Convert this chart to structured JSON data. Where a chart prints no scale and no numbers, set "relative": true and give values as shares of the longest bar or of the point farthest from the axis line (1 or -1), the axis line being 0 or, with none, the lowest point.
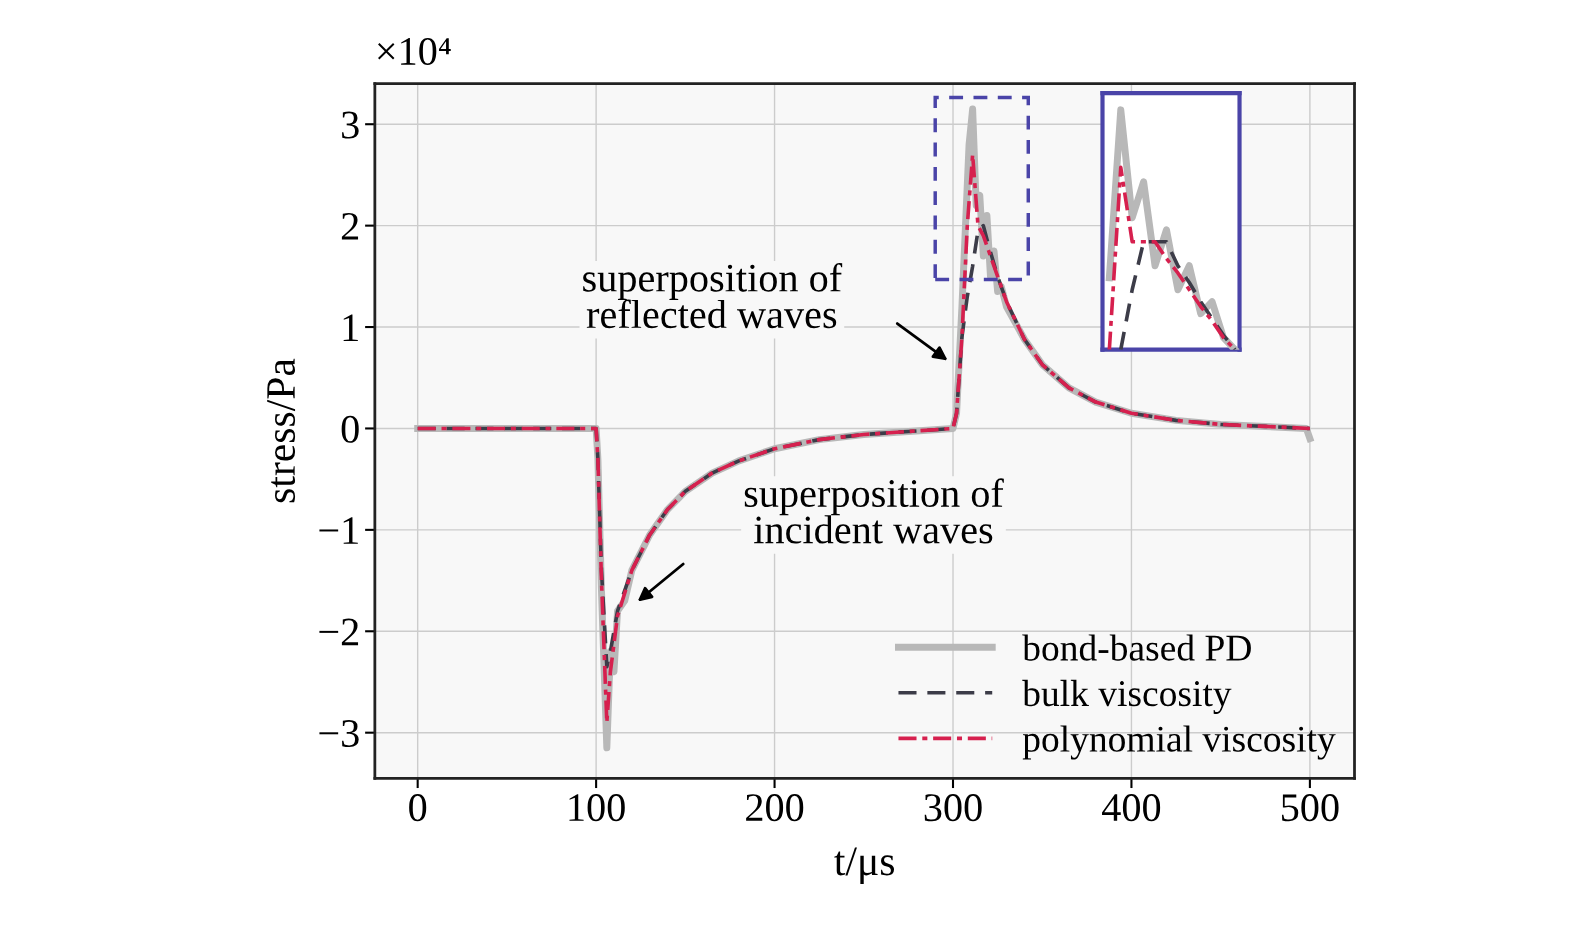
{
  "chart_data": [
    {
      "type": "line",
      "xlabel": "t/μs",
      "ylabel": "stress/Pa",
      "xlim": [
        -24,
        525
      ],
      "ylim": [
        -3.45,
        3.4
      ],
      "xticks": [
        0,
        100,
        200,
        300,
        400,
        500
      ],
      "yticks": [
        {
          "value": -3,
          "label": "−3"
        },
        {
          "value": -2,
          "label": "−2"
        },
        {
          "value": -1,
          "label": "−1"
        },
        0,
        1,
        2,
        3
      ],
      "grid": true,
      "legend": "bottom right",
      "annotations": [
        "×10⁴",
        "superposition of\nreflected waves",
        "superposition of\nincident waves"
      ],
      "series": [
        {
          "name": "bond-based PD",
          "color": "#b8b8b8",
          "line_style": "solid",
          "x": [
            0,
            100,
            101,
            103,
            106,
            108,
            110,
            112,
            116,
            120,
            130,
            140,
            150,
            165,
            180,
            200,
            225,
            250,
            275,
            300,
            302,
            305,
            309,
            311,
            313,
            315,
            317,
            319,
            321,
            323,
            325,
            327,
            330,
            340,
            350,
            365,
            380,
            400,
            425,
            450,
            475,
            498,
            500
          ],
          "values": [
            0,
            0,
            -0.3,
            -1.6,
            -3.15,
            -2.2,
            -2.4,
            -1.8,
            -1.7,
            -1.4,
            -1.05,
            -0.8,
            -0.62,
            -0.44,
            -0.32,
            -0.2,
            -0.11,
            -0.06,
            -0.03,
            0,
            0.15,
            1.2,
            2.8,
            3.15,
            2.2,
            2.3,
            1.7,
            2.1,
            1.5,
            1.75,
            1.35,
            1.4,
            1.2,
            0.88,
            0.63,
            0.4,
            0.26,
            0.15,
            0.08,
            0.04,
            0.02,
            0,
            -0.1
          ]
        },
        {
          "name": "bulk viscosity",
          "color": "#3c3c48",
          "line_style": "dashed",
          "x": [
            0,
            100,
            101,
            103,
            106,
            108,
            112,
            120,
            130,
            140,
            150,
            165,
            180,
            200,
            225,
            250,
            275,
            300,
            302,
            305,
            308,
            311,
            314,
            317,
            320,
            325,
            330,
            340,
            350,
            365,
            380,
            400,
            425,
            450,
            475,
            500
          ],
          "values": [
            0,
            0,
            -0.3,
            -1.4,
            -2.35,
            -2.2,
            -1.8,
            -1.4,
            -1.05,
            -0.8,
            -0.62,
            -0.44,
            -0.32,
            -0.2,
            -0.11,
            -0.06,
            -0.03,
            0,
            0.15,
            0.9,
            1.3,
            1.6,
            1.95,
            2.0,
            1.8,
            1.5,
            1.25,
            0.88,
            0.63,
            0.4,
            0.26,
            0.15,
            0.08,
            0.04,
            0.02,
            0
          ]
        },
        {
          "name": "polynomial viscosity",
          "color": "#d6204e",
          "line_style": "dashdot",
          "x": [
            0,
            100,
            101,
            103,
            106,
            108,
            112,
            120,
            130,
            140,
            150,
            165,
            180,
            200,
            225,
            250,
            275,
            300,
            302,
            305,
            308,
            311,
            314,
            317,
            320,
            325,
            330,
            340,
            350,
            365,
            380,
            400,
            425,
            450,
            475,
            500
          ],
          "values": [
            0,
            0,
            -0.3,
            -1.5,
            -2.9,
            -2.4,
            -1.85,
            -1.4,
            -1.05,
            -0.8,
            -0.62,
            -0.44,
            -0.32,
            -0.2,
            -0.11,
            -0.06,
            -0.03,
            0,
            0.15,
            0.9,
            2.0,
            2.7,
            2.0,
            1.9,
            1.75,
            1.5,
            1.25,
            0.88,
            0.63,
            0.4,
            0.26,
            0.15,
            0.08,
            0.04,
            0.02,
            0
          ]
        }
      ]
    },
    {
      "type": "line",
      "relative": true,
      "categories": [
        null,
        null,
        null,
        null,
        null,
        null,
        null,
        null,
        null,
        null,
        null,
        null
      ],
      "series": [
        {
          "color": "#b8b8b8",
          "line_style": "solid",
          "values": [
            0.3,
            1.0,
            0.55,
            0.7,
            0.35,
            0.5,
            0.25,
            0.35,
            0.15,
            0.2,
            0.05,
            0.0
          ]
        },
        {
          "color": "#3c3c48",
          "line_style": "dashed",
          "values": [
            null,
            0.0,
            0.25,
            0.45,
            0.45,
            0.45,
            0.35,
            0.28,
            0.2,
            0.13,
            0.06,
            0.0
          ]
        },
        {
          "color": "#d6204e",
          "line_style": "dashdot",
          "values": [
            0.0,
            0.76,
            0.45,
            0.45,
            0.45,
            0.38,
            0.32,
            0.25,
            0.18,
            0.12,
            0.05,
            0.0
          ]
        }
      ]
    }
  ]
}
